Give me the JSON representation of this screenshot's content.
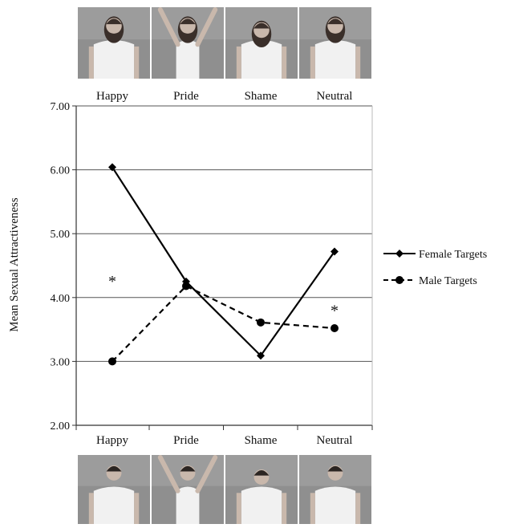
{
  "chart_data": {
    "type": "line",
    "categories": [
      "Happy",
      "Pride",
      "Shame",
      "Neutral"
    ],
    "top_photo_labels": [
      "Happy",
      "Pride",
      "Shame",
      "Neutral"
    ],
    "ylabel": "Mean Sexual Attractiveness",
    "ylim": [
      2.0,
      7.0
    ],
    "yticks": [
      "2.00",
      "3.00",
      "4.00",
      "5.00",
      "6.00",
      "7.00"
    ],
    "grid": true,
    "legend_position": "right",
    "series": [
      {
        "name": "Female Targets",
        "values": [
          6.04,
          4.25,
          3.09,
          4.72
        ],
        "style": "solid",
        "marker": "diamond",
        "color": "#000000"
      },
      {
        "name": "Male Targets",
        "values": [
          3.0,
          4.18,
          3.61,
          3.52
        ],
        "style": "dashed",
        "marker": "circle",
        "color": "#000000"
      }
    ],
    "annotations": [
      {
        "text": "*",
        "category": "Happy",
        "y": 4.3
      },
      {
        "text": "*",
        "category": "Neutral",
        "y": 3.84
      }
    ]
  },
  "photos": {
    "top": [
      "woman-happy",
      "woman-pride",
      "woman-shame",
      "woman-neutral"
    ],
    "bottom": [
      "man-happy",
      "man-pride",
      "man-shame",
      "man-neutral"
    ]
  }
}
